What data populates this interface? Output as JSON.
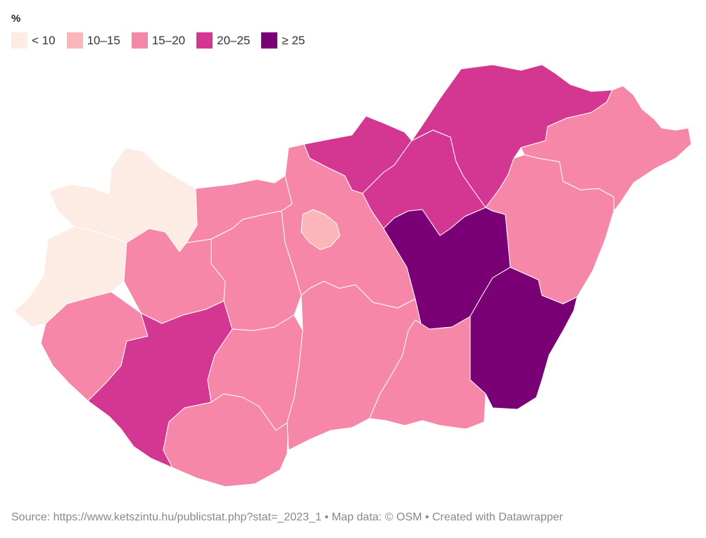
{
  "legend": {
    "title": "%",
    "items": [
      {
        "label": "< 10",
        "color": "#fdece4"
      },
      {
        "label": "10–15",
        "color": "#fbb6b9"
      },
      {
        "label": "15–20",
        "color": "#f687a9"
      },
      {
        "label": "20–25",
        "color": "#d43791"
      },
      {
        "label": "≥ 25",
        "color": "#7a0076"
      }
    ]
  },
  "footer": {
    "source": "Source: https://www.ketszintu.hu/publicstat.php?stat=_2023_1 • Map data: © OSM  • Created with Datawrapper"
  },
  "map_data": {
    "country": "Hungary",
    "units": "%",
    "regions": [
      {
        "name": "Győr-Moson-Sopron",
        "class": "< 10"
      },
      {
        "name": "Vas",
        "class": "< 10"
      },
      {
        "name": "Zala",
        "class": "15–20"
      },
      {
        "name": "Veszprém",
        "class": "15–20"
      },
      {
        "name": "Komárom-Esztergom",
        "class": "15–20"
      },
      {
        "name": "Fejér",
        "class": "15–20"
      },
      {
        "name": "Somogy",
        "class": "20–25"
      },
      {
        "name": "Tolna",
        "class": "15–20"
      },
      {
        "name": "Baranya",
        "class": "15–20"
      },
      {
        "name": "Budapest",
        "class": "10–15"
      },
      {
        "name": "Pest",
        "class": "15–20"
      },
      {
        "name": "Bács-Kiskun",
        "class": "15–20"
      },
      {
        "name": "Nógrád",
        "class": "20–25"
      },
      {
        "name": "Heves",
        "class": "20–25"
      },
      {
        "name": "Borsod-Abaúj-Zemplén",
        "class": "20–25"
      },
      {
        "name": "Jász-Nagykun-Szolnok",
        "class": "≥ 25"
      },
      {
        "name": "Csongrád-Csanád",
        "class": "15–20"
      },
      {
        "name": "Békés",
        "class": "≥ 25"
      },
      {
        "name": "Hajdú-Bihar",
        "class": "15–20"
      },
      {
        "name": "Szabolcs-Szatmár-Bereg",
        "class": "15–20"
      }
    ]
  }
}
